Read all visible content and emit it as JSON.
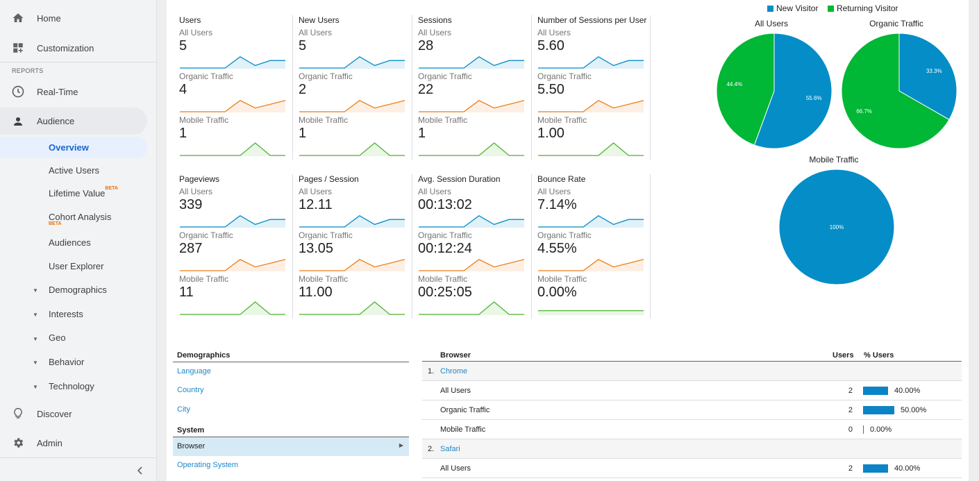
{
  "sidebar": {
    "home": "Home",
    "customization": "Customization",
    "reports_header": "REPORTS",
    "realtime": "Real-Time",
    "audience": "Audience",
    "overview": "Overview",
    "active_users": "Active Users",
    "lifetime_value": "Lifetime Value",
    "beta": "BETA",
    "cohort_analysis": "Cohort Analysis",
    "audiences": "Audiences",
    "user_explorer": "User Explorer",
    "demographics": "Demographics",
    "interests": "Interests",
    "geo": "Geo",
    "behavior": "Behavior",
    "technology": "Technology",
    "discover": "Discover",
    "admin": "Admin",
    "collapse_icon": "chevron-left-icon"
  },
  "metrics": [
    {
      "title": "Users",
      "rows": [
        {
          "segment": "All Users",
          "value": "5"
        },
        {
          "segment": "Organic Traffic",
          "value": "4"
        },
        {
          "segment": "Mobile Traffic",
          "value": "1"
        }
      ]
    },
    {
      "title": "New Users",
      "rows": [
        {
          "segment": "All Users",
          "value": "5"
        },
        {
          "segment": "Organic Traffic",
          "value": "2"
        },
        {
          "segment": "Mobile Traffic",
          "value": "1"
        }
      ]
    },
    {
      "title": "Sessions",
      "rows": [
        {
          "segment": "All Users",
          "value": "28"
        },
        {
          "segment": "Organic Traffic",
          "value": "22"
        },
        {
          "segment": "Mobile Traffic",
          "value": "1"
        }
      ]
    },
    {
      "title": "Number of Sessions per User",
      "rows": [
        {
          "segment": "All Users",
          "value": "5.60"
        },
        {
          "segment": "Organic Traffic",
          "value": "5.50"
        },
        {
          "segment": "Mobile Traffic",
          "value": "1.00"
        }
      ]
    },
    {
      "title": "Pageviews",
      "rows": [
        {
          "segment": "All Users",
          "value": "339"
        },
        {
          "segment": "Organic Traffic",
          "value": "287"
        },
        {
          "segment": "Mobile Traffic",
          "value": "11"
        }
      ]
    },
    {
      "title": "Pages / Session",
      "rows": [
        {
          "segment": "All Users",
          "value": "12.11"
        },
        {
          "segment": "Organic Traffic",
          "value": "13.05"
        },
        {
          "segment": "Mobile Traffic",
          "value": "11.00"
        }
      ]
    },
    {
      "title": "Avg. Session Duration",
      "rows": [
        {
          "segment": "All Users",
          "value": "00:13:02"
        },
        {
          "segment": "Organic Traffic",
          "value": "00:12:24"
        },
        {
          "segment": "Mobile Traffic",
          "value": "00:25:05"
        }
      ]
    },
    {
      "title": "Bounce Rate",
      "rows": [
        {
          "segment": "All Users",
          "value": "7.14%"
        },
        {
          "segment": "Organic Traffic",
          "value": "4.55%"
        },
        {
          "segment": "Mobile Traffic",
          "value": "0.00%"
        }
      ]
    }
  ],
  "colors": {
    "all_users": "#058dc7",
    "organic": "#ed7e17",
    "mobile": "#50b432",
    "new_visitor": "#058dc7",
    "returning_visitor": "#00b736"
  },
  "pie_legend": {
    "new": "New Visitor",
    "returning": "Returning Visitor"
  },
  "pies": [
    {
      "title": "All Users",
      "new_pct": 55.6,
      "returning_pct": 44.4,
      "new_label": "55.6%",
      "returning_label": "44.4%"
    },
    {
      "title": "Organic Traffic",
      "new_pct": 33.3,
      "returning_pct": 66.7,
      "new_label": "33.3%",
      "returning_label": "66.7%"
    },
    {
      "title": "Mobile Traffic",
      "new_pct": 100,
      "returning_pct": 0,
      "new_label": "100%",
      "returning_label": ""
    }
  ],
  "left_list": {
    "demographics_header": "Demographics",
    "language": "Language",
    "country": "Country",
    "city": "City",
    "system_header": "System",
    "browser": "Browser",
    "os": "Operating System"
  },
  "browser_table": {
    "col_browser": "Browser",
    "col_users": "Users",
    "col_pct": "% Users",
    "rows": [
      {
        "kind": "group",
        "index": "1.",
        "name": "Chrome"
      },
      {
        "kind": "seg",
        "name": "All Users",
        "users": "2",
        "pct": "40.00%",
        "frac": 0.4
      },
      {
        "kind": "seg",
        "name": "Organic Traffic",
        "users": "2",
        "pct": "50.00%",
        "frac": 0.5
      },
      {
        "kind": "seg",
        "name": "Mobile Traffic",
        "users": "0",
        "pct": "0.00%",
        "frac": 0.0
      },
      {
        "kind": "group",
        "index": "2.",
        "name": "Safari"
      },
      {
        "kind": "seg",
        "name": "All Users",
        "users": "2",
        "pct": "40.00%",
        "frac": 0.4
      }
    ]
  }
}
